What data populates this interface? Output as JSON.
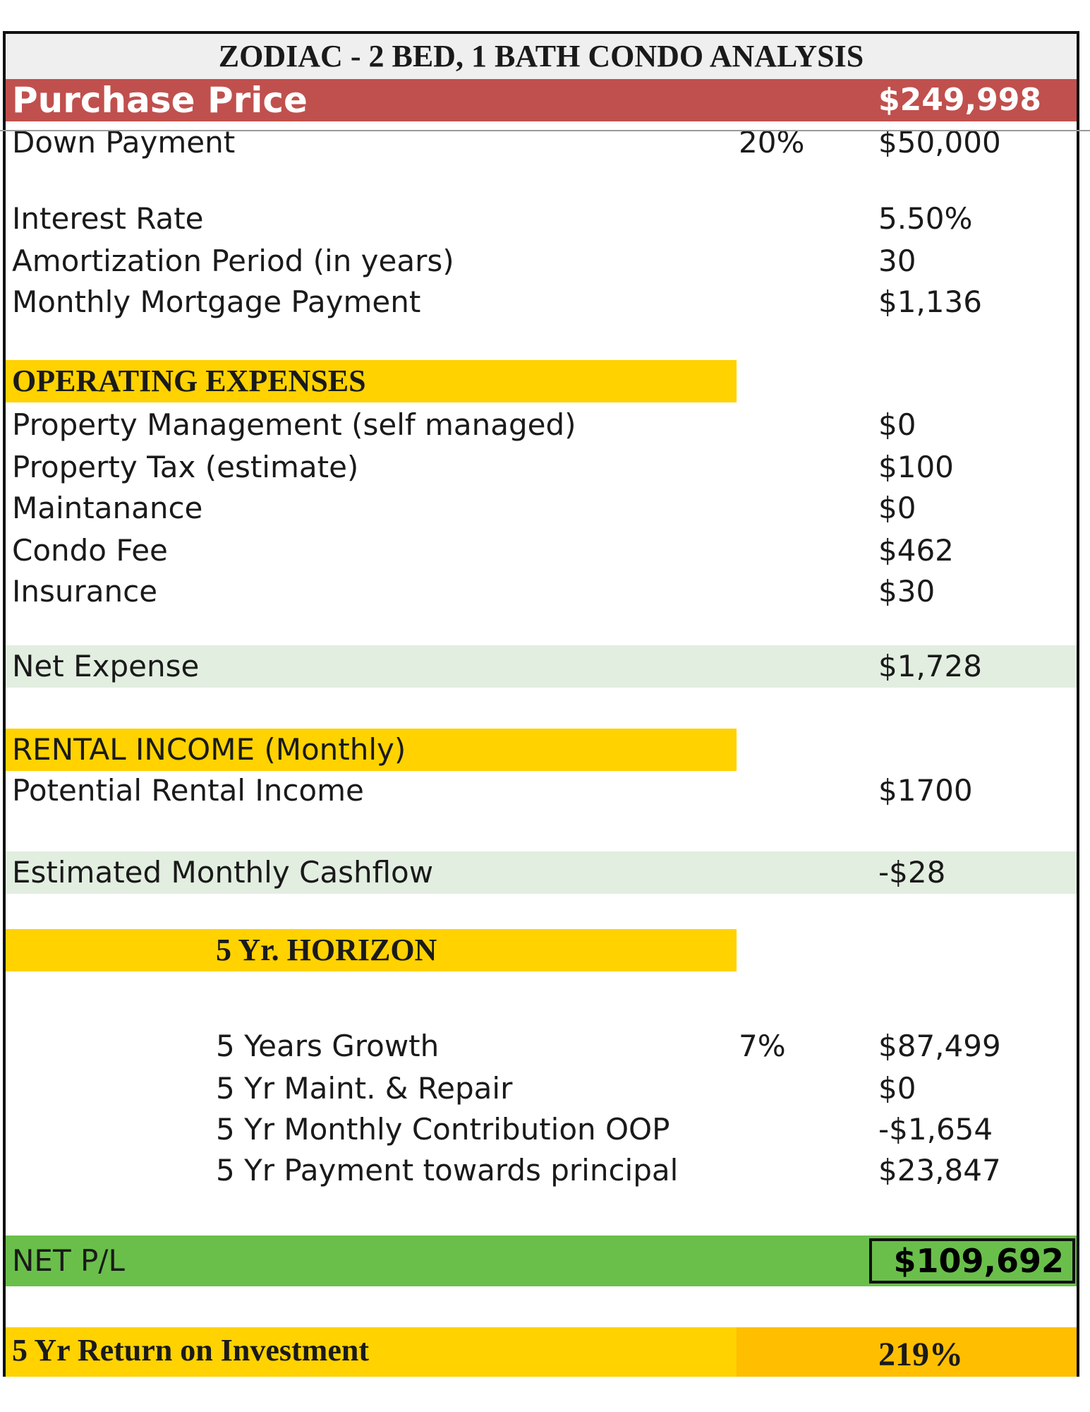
{
  "title": "ZODIAC - 2 BED, 1 BATH CONDO ANALYSIS",
  "purchase": {
    "label": "Purchase Price",
    "value": "$249,998"
  },
  "down_payment": {
    "label": "Down Payment",
    "percent": "20%",
    "value": "$50,000"
  },
  "mortgage": [
    {
      "label": "Interest Rate",
      "value": "5.50%"
    },
    {
      "label": "Amortization Period (in years)",
      "value": "30"
    },
    {
      "label": "Monthly Mortgage Payment",
      "value": "$1,136"
    }
  ],
  "operating_expenses": {
    "heading": "OPERATING EXPENSES",
    "items": [
      {
        "label": "Property Management (self managed)",
        "value": "$0"
      },
      {
        "label": "Property Tax (estimate)",
        "value": "$100"
      },
      {
        "label": "Maintanance",
        "value": "$0"
      },
      {
        "label": "Condo Fee",
        "value": "$462"
      },
      {
        "label": "Insurance",
        "value": "$30"
      }
    ]
  },
  "net_expense": {
    "label": "Net Expense",
    "value": "$1,728"
  },
  "rental_income": {
    "heading": "RENTAL INCOME (Monthly)",
    "label": "Potential Rental Income",
    "value": "$1700"
  },
  "cashflow": {
    "label": "Estimated Monthly Cashflow",
    "value": "-$28"
  },
  "horizon": {
    "heading": "5 Yr. HORIZON",
    "items": [
      {
        "label": "5 Years Growth",
        "percent": "7%",
        "value": "$87,499"
      },
      {
        "label": "5 Yr Maint. & Repair",
        "value": "$0"
      },
      {
        "label": "5 Yr Monthly Contribution OOP",
        "value": "-$1,654"
      },
      {
        "label": "5 Yr Payment towards principal",
        "value": "$23,847"
      }
    ]
  },
  "net_pl": {
    "label": "NET P/L",
    "value": "$109,692"
  },
  "roi": {
    "label": "5 Yr Return on Investment",
    "value": "219%"
  },
  "colors": {
    "header_red": "#c0504d",
    "section_yellow": "#ffd200",
    "roi_orange": "#ffbf00",
    "net_green": "#6abf4b",
    "pale_green": "#e2eee0"
  }
}
